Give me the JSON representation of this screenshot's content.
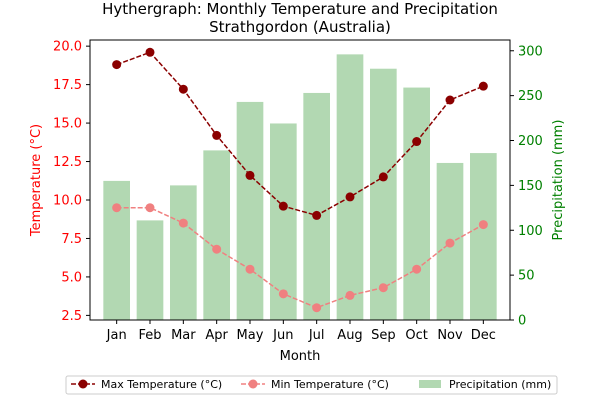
{
  "chart_data": {
    "type": "bar+line",
    "title_line1": "Hythergraph: Monthly Temperature and Precipitation",
    "title_line2": "Strathgordon (Australia)",
    "xlabel": "Month",
    "ylabel_left": "Temperature (°C)",
    "ylabel_right": "Precipitation (mm)",
    "categories": [
      "Jan",
      "Feb",
      "Mar",
      "Apr",
      "May",
      "Jun",
      "Jul",
      "Aug",
      "Sep",
      "Oct",
      "Nov",
      "Dec"
    ],
    "ylim_left": [
      2.2,
      20.4
    ],
    "ylim_right": [
      0,
      312
    ],
    "yticks_left": [
      "2.5",
      "5.0",
      "7.5",
      "10.0",
      "12.5",
      "15.0",
      "17.5",
      "20.0"
    ],
    "yticks_right": [
      "0",
      "50",
      "100",
      "150",
      "200",
      "250",
      "300"
    ],
    "series": [
      {
        "name": "Max Temperature (°C)",
        "type": "line",
        "axis": "left",
        "color": "#8b0000",
        "dashed": true,
        "values": [
          18.8,
          19.6,
          17.2,
          14.2,
          11.6,
          9.6,
          9.0,
          10.2,
          11.5,
          13.8,
          16.5,
          17.4
        ]
      },
      {
        "name": "Min Temperature (°C)",
        "type": "line",
        "axis": "left",
        "color": "#f08080",
        "dashed": true,
        "values": [
          9.5,
          9.5,
          8.5,
          6.8,
          5.5,
          3.9,
          3.0,
          3.8,
          4.3,
          5.5,
          7.2,
          8.4
        ]
      },
      {
        "name": "Precipitation (mm)",
        "type": "bar",
        "axis": "right",
        "color": "#b2d8b2",
        "values": [
          155,
          111,
          150,
          189,
          243,
          219,
          253,
          296,
          280,
          259,
          175,
          186
        ]
      }
    ],
    "left_axis_color": "#ff0000",
    "right_axis_color": "#008000",
    "legend_position": "bottom-center",
    "grid": false
  }
}
